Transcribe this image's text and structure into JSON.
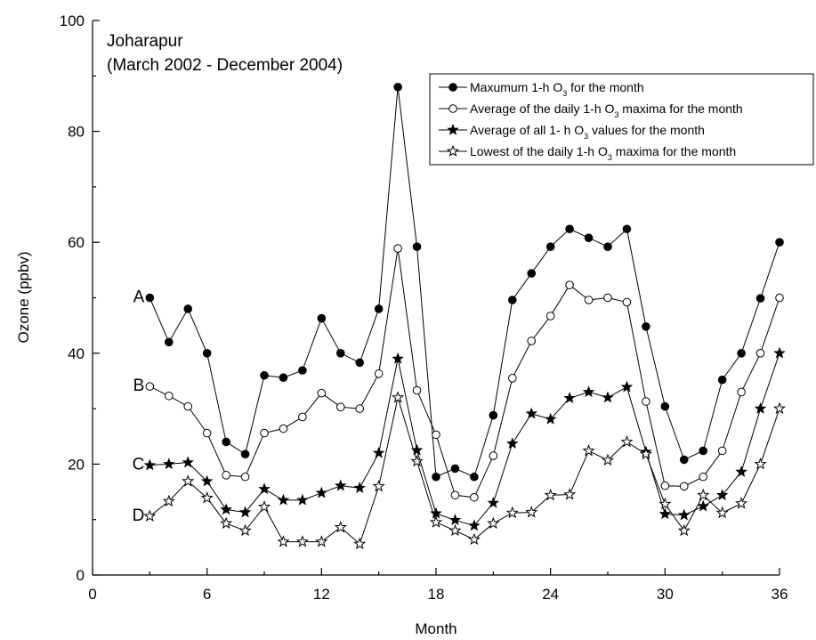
{
  "chart_data": {
    "type": "line",
    "title": "Joharapur",
    "subtitle": "(March 2002 - December 2004)",
    "xlabel": "Month",
    "ylabel": "Ozone (ppbv)",
    "xlim": [
      0,
      36
    ],
    "ylim": [
      0,
      100
    ],
    "xticks": [
      0,
      6,
      12,
      18,
      24,
      30,
      36
    ],
    "yticks": [
      0,
      20,
      40,
      60,
      80,
      100
    ],
    "grid": false,
    "legend_position": "top-right",
    "x": [
      3,
      4,
      5,
      6,
      7,
      8,
      9,
      10,
      11,
      12,
      13,
      14,
      15,
      16,
      17,
      18,
      19,
      20,
      21,
      22,
      23,
      24,
      25,
      26,
      27,
      28,
      29,
      30,
      31,
      32,
      33,
      34,
      35,
      36
    ],
    "series": [
      {
        "letter": "A",
        "marker": "filled-circle",
        "legend_parts": [
          "Maxumum 1-h O",
          "3",
          " for the month"
        ],
        "values": [
          50,
          42,
          48,
          40,
          24,
          21.8,
          36,
          35.6,
          36.9,
          46.3,
          40,
          38.3,
          48,
          88,
          59.2,
          17.7,
          19.2,
          17.7,
          28.8,
          49.6,
          54.4,
          59.2,
          62.4,
          60.8,
          59.2,
          62.4,
          44.8,
          30.4,
          20.8,
          22.4,
          35.2,
          40,
          49.9,
          60
        ]
      },
      {
        "letter": "B",
        "marker": "open-circle",
        "legend_parts": [
          "Average of the daily 1-h O",
          "3",
          " maxima for the month"
        ],
        "values": [
          34,
          32.3,
          30.4,
          25.6,
          18,
          17.7,
          25.6,
          26.4,
          28.5,
          32.8,
          30.3,
          30,
          36.3,
          58.9,
          33.3,
          25.3,
          14.4,
          14,
          21.5,
          35.5,
          42.2,
          46.7,
          52.3,
          49.6,
          50,
          49.2,
          31.3,
          16.1,
          16,
          17.7,
          22.4,
          33,
          40,
          50
        ]
      },
      {
        "letter": "C",
        "marker": "filled-star",
        "legend_parts": [
          "Average of all 1- h O",
          "3",
          " values for the month"
        ],
        "values": [
          19.8,
          20,
          20.3,
          16.9,
          11.8,
          11.3,
          15.5,
          13.5,
          13.5,
          14.8,
          16.1,
          15.7,
          22,
          39,
          22.5,
          11.1,
          9.9,
          8.9,
          13,
          23.7,
          29.1,
          28.1,
          31.9,
          33,
          32,
          33.9,
          22.2,
          11,
          10.8,
          12.4,
          14.4,
          18.6,
          30,
          40
        ]
      },
      {
        "letter": "D",
        "marker": "open-star",
        "legend_parts": [
          "Lowest of the daily 1-h O",
          "3",
          " maxima for the month"
        ],
        "values": [
          10.6,
          13.3,
          16.9,
          13.9,
          9.3,
          8,
          12.3,
          6,
          6,
          6,
          8.6,
          5.6,
          16,
          32,
          20.5,
          9.5,
          8,
          6.4,
          9.3,
          11.2,
          11.3,
          14.4,
          14.5,
          22.4,
          20.7,
          24,
          21.8,
          12.8,
          8,
          14.4,
          11.2,
          12.9,
          20,
          30
        ]
      }
    ]
  }
}
